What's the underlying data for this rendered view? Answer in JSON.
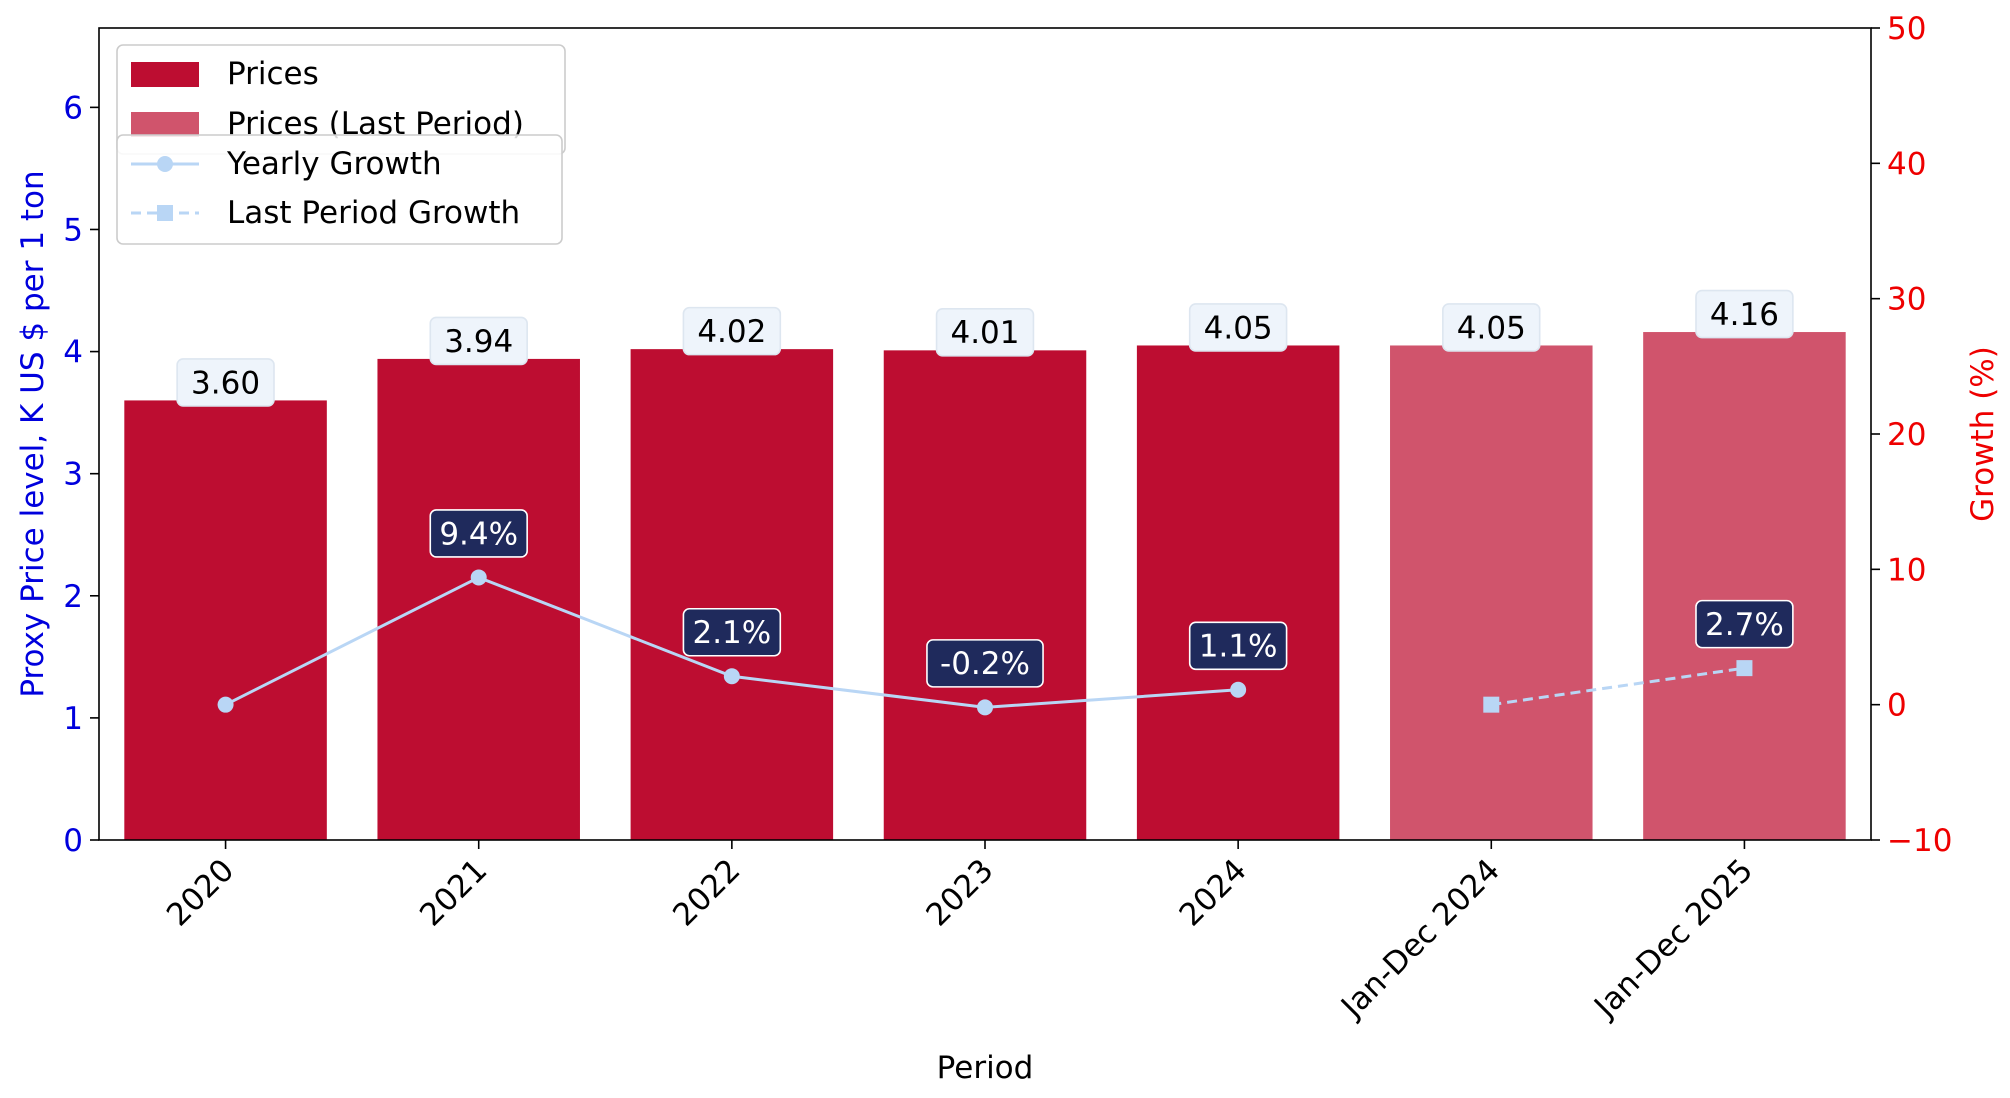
{
  "chart_data": {
    "type": "bar",
    "categories": [
      "2020",
      "2021",
      "2022",
      "2023",
      "2024",
      "Jan-Dec 2024",
      "Jan-Dec 2025"
    ],
    "xlabel": "Period",
    "ylabel": "Proxy Price level, K US $ per 1 ton",
    "y2label": "Growth (%)",
    "ylim": [
      0,
      6.65
    ],
    "y2lim": [
      -10,
      50
    ],
    "yticks": [
      "0",
      "1",
      "2",
      "3",
      "4",
      "5",
      "6"
    ],
    "y2ticks": [
      "−10",
      "0",
      "10",
      "20",
      "30",
      "40",
      "50"
    ],
    "grid": false,
    "legend_placement": "top-left",
    "series": [
      {
        "name": "Prices",
        "kind": "bar",
        "color": "#bd0d31",
        "values": [
          3.6,
          3.94,
          4.02,
          4.01,
          4.05,
          null,
          null
        ],
        "labels": [
          "3.60",
          "3.94",
          "4.02",
          "4.01",
          "4.05",
          "",
          ""
        ]
      },
      {
        "name": "Prices (Last Period)",
        "kind": "bar",
        "color": "#d0546c",
        "values": [
          null,
          null,
          null,
          null,
          null,
          4.05,
          4.16
        ],
        "labels": [
          "",
          "",
          "",
          "",
          "",
          "4.05",
          "4.16"
        ]
      },
      {
        "name": "Yearly Growth",
        "kind": "line",
        "axis": "right",
        "color": "#b9d6f5",
        "marker": "circle",
        "values": [
          0,
          9.4,
          2.1,
          -0.2,
          1.1,
          null,
          null
        ],
        "labels": [
          "",
          "9.4%",
          "2.1%",
          "-0.2%",
          "1.1%",
          "",
          ""
        ]
      },
      {
        "name": "Last Period Growth",
        "kind": "line",
        "axis": "right",
        "color": "#b9d6f5",
        "marker": "square",
        "dashed": true,
        "values": [
          null,
          null,
          null,
          null,
          null,
          0,
          2.7
        ],
        "labels": [
          "",
          "",
          "",
          "",
          "",
          "",
          "2.7%"
        ]
      }
    ],
    "colors": {
      "left_axis": "#0000dd",
      "right_axis": "#ee0000",
      "growth_label_bg": "#1f2a5c",
      "price_label_bg": "#eef4fb"
    }
  }
}
